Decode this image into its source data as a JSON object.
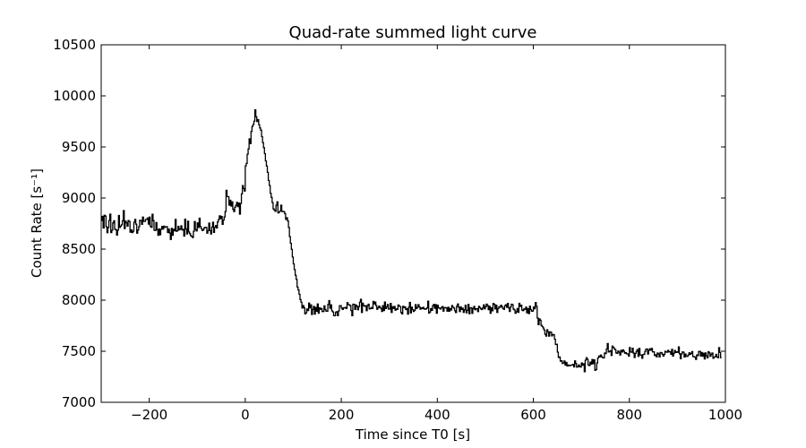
{
  "chart_data": {
    "type": "line",
    "title": "Quad-rate summed light curve",
    "xlabel": "Time since T0 [s]",
    "ylabel": "Count Rate [s⁻¹]",
    "xlim": [
      -300,
      1000
    ],
    "ylim": [
      7000,
      10500
    ],
    "xticks": [
      -200,
      0,
      200,
      400,
      600,
      800,
      1000
    ],
    "xtick_labels": [
      "−200",
      "0",
      "200",
      "400",
      "600",
      "800",
      "1000"
    ],
    "yticks": [
      7000,
      7500,
      8000,
      8500,
      9000,
      9500,
      10000,
      10500
    ],
    "ytick_labels": [
      "7000",
      "7500",
      "8000",
      "8500",
      "9000",
      "9500",
      "10000",
      "10500"
    ],
    "grid": false,
    "line_color": "#000000",
    "series": [
      {
        "style": "steps",
        "x_start": -300,
        "x_step": 2,
        "values": [
          8780,
          8820,
          8706,
          8831,
          8823,
          8719,
          8660,
          8711,
          8781,
          8842,
          8661,
          8684,
          8756,
          8777,
          8694,
          8689,
          8637,
          8684,
          8829,
          8712,
          8725,
          8738,
          8777,
          8877,
          8701,
          8774,
          8757,
          8725,
          8779,
          8770,
          8666,
          8688,
          8661,
          8674,
          8763,
          8790,
          8744,
          8656,
          8687,
          8719,
          8782,
          8778,
          8743,
          8813,
          8771,
          8771,
          8790,
          8790,
          8805,
          8745,
          8813,
          8723,
          8713,
          8841,
          8779,
          8685,
          8682,
          8760,
          8692,
          8635,
          8697,
          8641,
          8693,
          8721,
          8696,
          8724,
          8713,
          8717,
          8719,
          8663,
          8695,
          8658,
          8594,
          8703,
          8635,
          8694,
          8679,
          8790,
          8674,
          8680,
          8722,
          8689,
          8698,
          8728,
          8687,
          8693,
          8627,
          8793,
          8698,
          8648,
          8773,
          8668,
          8651,
          8631,
          8624,
          8613,
          8674,
          8769,
          8691,
          8678,
          8756,
          8712,
          8802,
          8721,
          8701,
          8681,
          8689,
          8709,
          8712,
          8711,
          8656,
          8681,
          8754,
          8681,
          8648,
          8716,
          8763,
          8664,
          8714,
          8730,
          8706,
          8766,
          8790,
          8826,
          8798,
          8820,
          8742,
          8783,
          8815,
          8868,
          9075,
          9014,
          9013,
          8930,
          8978,
          8921,
          8962,
          8890,
          8867,
          8910,
          8928,
          8957,
          8916,
          8950,
          8842,
          8946,
          9041,
          9121,
          9093,
          9068,
          9315,
          9339,
          9429,
          9481,
          9579,
          9533,
          9652,
          9700,
          9719,
          9752,
          9864,
          9796,
          9749,
          9767,
          9717,
          9686,
          9664,
          9601,
          9542,
          9493,
          9434,
          9363,
          9313,
          9251,
          9172,
          9123,
          9046,
          9006,
          8955,
          8894,
          8883,
          8870,
          8930,
          8963,
          8854,
          8862,
          8874,
          8930,
          8867,
          8869,
          8866,
          8847,
          8791,
          8807,
          8776,
          8712,
          8622,
          8557,
          8498,
          8422,
          8355,
          8299,
          8244,
          8203,
          8128,
          8099,
          8057,
          8006,
          7980,
          7923,
          7947,
          7925,
          7866,
          7876,
          7913,
          7898,
          7971,
          7924,
          7954,
          7860,
          7909,
          7938,
          7863,
          7929,
          7892,
          7962,
          7873,
          7925,
          7910,
          7919,
          7888,
          7890,
          7944,
          7909,
          7893,
          7892,
          7959,
          7995,
          7921,
          7954,
          7896,
          7885,
          7848,
          7848,
          7882,
          7887,
          7849,
          7895,
          7945,
          7946,
          7923,
          7909,
          7925,
          7923,
          7929,
          7919,
          7976,
          7956,
          7954,
          7947,
          7898,
          7848,
          7960,
          7959,
          7909,
          7952,
          7939,
          7906,
          7936,
          7980,
          8009,
          7880,
          7970,
          7947,
          7941,
          7945,
          7897,
          7947,
          7960,
          7915,
          7917,
          7927,
          7918,
          7988,
          7963,
          7981,
          7946,
          7910,
          7926,
          7942,
          7929,
          7919,
          7890,
          7946,
          7898,
          7981,
          7918,
          7934,
          7957,
          7913,
          7912,
          7968,
          7880,
          7935,
          7919,
          7938,
          7902,
          7914,
          7910,
          7953,
          7944,
          7935,
          7879,
          7865,
          7939,
          7927,
          7934,
          7908,
          7916,
          7863,
          7931,
          7978,
          7875,
          7932,
          7908,
          7889,
          7900,
          7956,
          7918,
          7931,
          7956,
          7934,
          7911,
          7924,
          7918,
          7930,
          7914,
          7911,
          7915,
          7925,
          7990,
          7874,
          7885,
          7918,
          7900,
          7944,
          7958,
          7920,
          7956,
          7872,
          7951,
          7925,
          7921,
          7914,
          7927,
          7937,
          7893,
          7926,
          7927,
          7923,
          7893,
          7931,
          7892,
          7917,
          7904,
          7947,
          7932,
          7922,
          7897,
          7878,
          7940,
          7962,
          7930,
          7888,
          7934,
          7909,
          7921,
          7881,
          7905,
          7951,
          7876,
          7900,
          7958,
          7868,
          7923,
          7926,
          7871,
          7918,
          7938,
          7906,
          7915,
          7916,
          7888,
          7940,
          7927,
          7915,
          7908,
          7924,
          7954,
          7915,
          7935,
          7961,
          7947,
          7907,
          7940,
          7872,
          7925,
          7896,
          7968,
          7958,
          7915,
          7950,
          7880,
          7918,
          7935,
          7931,
          7951,
          7935,
          7919,
          7910,
          7944,
          7955,
          7930,
          7968,
          7924,
          7890,
          7933,
          7960,
          7955,
          7913,
          7904,
          7872,
          7887,
          7917,
          7881,
          7969,
          7939,
          7950,
          7903,
          7897,
          7914,
          7910,
          7932,
          7876,
          7916,
          7869,
          7941,
          7909,
          7892,
          7894,
          7933,
          7916,
          7977,
          7940,
          7825,
          7760,
          7817,
          7803,
          7754,
          7742,
          7728,
          7707,
          7666,
          7648,
          7710,
          7689,
          7648,
          7690,
          7686,
          7650,
          7664,
          7661,
          7617,
          7566,
          7568,
          7491,
          7439,
          7444,
          7403,
          7407,
          7381,
          7385,
          7404,
          7364,
          7390,
          7356,
          7365,
          7359,
          7360,
          7364,
          7365,
          7371,
          7347,
          7406,
          7379,
          7344,
          7348,
          7366,
          7349,
          7346,
          7385,
          7363,
          7377,
          7299,
          7412,
          7436,
          7421,
          7365,
          7360,
          7393,
          7373,
          7419,
          7379,
          7415,
          7314,
          7320,
          7385,
          7433,
          7454,
          7444,
          7462,
          7445,
          7435,
          7434,
          7482,
          7477,
          7522,
          7575,
          7493,
          7499,
          7505,
          7459,
          7550,
          7537,
          7525,
          7514,
          7483,
          7479,
          7502,
          7491,
          7463,
          7509,
          7492,
          7513,
          7500,
          7480,
          7485,
          7474,
          7474,
          7452,
          7536,
          7492,
          7490,
          7529,
          7482,
          7439,
          7478,
          7499,
          7516,
          7450,
          7527,
          7464,
          7461,
          7431,
          7468,
          7470,
          7498,
          7519,
          7522,
          7473,
          7509,
          7524,
          7510,
          7527,
          7494,
          7494,
          7459,
          7466,
          7445,
          7482,
          7473,
          7444,
          7488,
          7485,
          7471,
          7453,
          7468,
          7500,
          7493,
          7490,
          7509,
          7494,
          7495,
          7471,
          7518,
          7453,
          7479,
          7507,
          7488,
          7494,
          7489,
          7543,
          7474,
          7427,
          7474,
          7493,
          7490,
          7443,
          7472,
          7451,
          7450,
          7463,
          7484,
          7469,
          7479,
          7496,
          7448,
          7447,
          7442,
          7420,
          7464,
          7458,
          7496,
          7499,
          7454,
          7488,
          7451,
          7480,
          7424,
          7483,
          7454,
          7435,
          7495,
          7484,
          7451,
          7470,
          7482,
          7431,
          7443,
          7446,
          7469,
          7444,
          7436,
          7535,
          7488,
          7437
        ]
      }
    ]
  }
}
